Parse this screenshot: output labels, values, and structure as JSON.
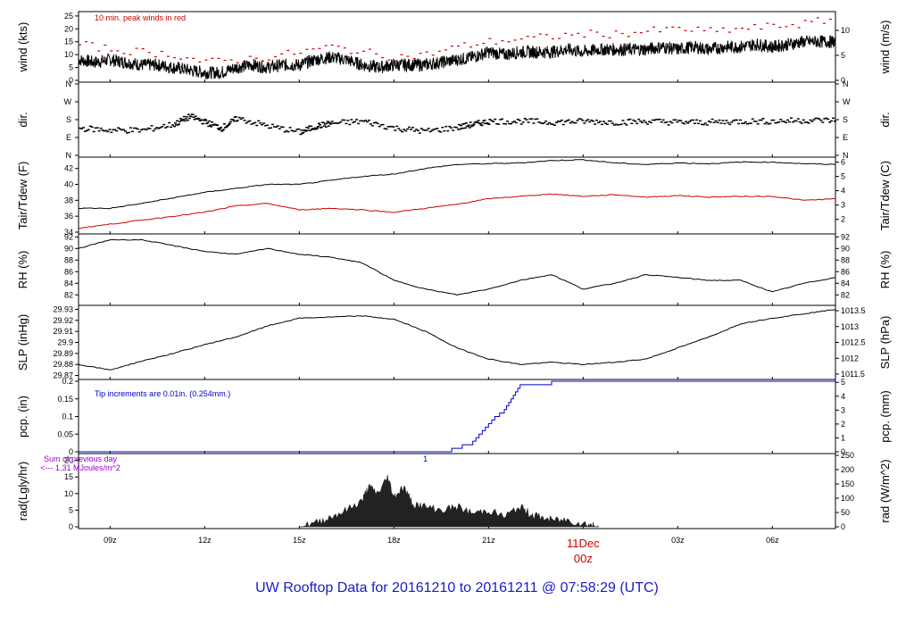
{
  "title": "UW Rooftop Data for 20161210  to  20161211 @ 07:58:29  (UTC)",
  "chart_data": [
    {
      "type": "line",
      "ylabel": "wind (kts)",
      "ylabel_right": "wind (m/s)",
      "ylim": [
        0,
        26
      ],
      "yticks": [
        0,
        5,
        10,
        15,
        20,
        25
      ],
      "ylim_right": [
        0,
        13.4
      ],
      "yticks_right": [
        0,
        5,
        10
      ],
      "annotation": "10 min. peak winds in red",
      "series": [
        {
          "color": "#000000",
          "x": [
            8,
            8.5,
            9,
            9.5,
            10,
            10.5,
            11,
            11.5,
            12,
            12.5,
            13,
            13.5,
            14,
            14.5,
            15,
            15.5,
            16,
            16.5,
            17,
            17.5,
            18,
            18.5,
            19,
            19.5,
            20,
            20.5,
            21,
            21.5,
            22,
            22.5,
            23,
            23.5,
            24,
            24.5,
            25,
            25.5,
            26,
            26.5,
            27,
            27.5,
            28,
            28.5,
            29,
            29.5,
            30,
            30.5,
            31,
            31.5,
            32
          ],
          "y": [
            8,
            7,
            8,
            7,
            6,
            6,
            5,
            4,
            3,
            3,
            5,
            6,
            5,
            6,
            6,
            8,
            9,
            8,
            6,
            5,
            6,
            6,
            6,
            7,
            8,
            9,
            11,
            10,
            11,
            11,
            11,
            12,
            11,
            12,
            12,
            12,
            12,
            13,
            12,
            13,
            12,
            13,
            13,
            14,
            13,
            14,
            15,
            15,
            15
          ]
        },
        {
          "color": "#cc0000",
          "style": "marks",
          "x": [
            8,
            9,
            10,
            11,
            12,
            13,
            14,
            15,
            16,
            17,
            18,
            19,
            20,
            21,
            22,
            23,
            24,
            25,
            26,
            27,
            28,
            29,
            30,
            31,
            32
          ],
          "y": [
            14,
            12,
            11,
            10,
            7,
            8,
            9,
            11,
            13,
            11,
            9,
            10,
            13,
            15,
            16,
            17,
            18,
            18,
            19,
            20,
            19,
            20,
            21,
            22,
            24
          ]
        }
      ]
    },
    {
      "type": "scatter",
      "ylabel": "dir.",
      "ylabel_right": "dir.",
      "yticks_labels": [
        "N",
        "E",
        "S",
        "W",
        "N"
      ],
      "ylim": [
        0,
        360
      ],
      "series": [
        {
          "color": "#000000",
          "x": [
            8,
            9,
            10,
            11,
            11.5,
            12,
            12.5,
            13,
            14,
            15,
            15.5,
            16,
            17,
            18,
            19,
            20,
            20.5,
            21,
            22,
            23,
            24,
            25,
            26,
            27,
            28,
            29,
            30,
            31,
            32
          ],
          "y": [
            140,
            130,
            130,
            160,
            200,
            170,
            140,
            190,
            150,
            120,
            150,
            165,
            175,
            140,
            125,
            145,
            160,
            175,
            175,
            170,
            175,
            170,
            175,
            170,
            170,
            175,
            175,
            180,
            180
          ]
        }
      ]
    },
    {
      "type": "line",
      "ylabel": "Tair/Tdew (F)",
      "ylabel_right": "Tair/Tdew (C)",
      "ylim": [
        34,
        43.2
      ],
      "yticks": [
        34,
        36,
        38,
        40,
        42
      ],
      "ylim_right": [
        1.11,
        6.22
      ],
      "yticks_right": [
        2,
        3,
        4,
        5,
        6
      ],
      "series": [
        {
          "color": "#000000",
          "x": [
            8,
            9,
            10,
            11,
            12,
            13,
            14,
            15,
            16,
            17,
            18,
            19,
            20,
            21,
            22,
            23,
            24,
            25,
            26,
            27,
            28,
            29,
            30,
            31,
            32
          ],
          "y": [
            37,
            37,
            37.6,
            38.3,
            39,
            39.5,
            40,
            40,
            40.5,
            41,
            41.3,
            42,
            42.5,
            42.6,
            42.7,
            43,
            43.1,
            42.7,
            42.5,
            42.7,
            42.6,
            42.8,
            42.8,
            42.6,
            42.5
          ]
        },
        {
          "color": "#cc0000",
          "x": [
            8,
            9,
            10,
            11,
            12,
            13,
            14,
            15,
            16,
            17,
            18,
            19,
            20,
            21,
            22,
            23,
            24,
            25,
            26,
            27,
            28,
            29,
            30,
            31,
            32
          ],
          "y": [
            34.5,
            35,
            35.5,
            36,
            36.5,
            37.3,
            37.6,
            36.8,
            37,
            36.8,
            36.5,
            37,
            37.5,
            38.2,
            38.5,
            38.8,
            38.5,
            38.7,
            38.4,
            38.6,
            38.4,
            38.5,
            38.5,
            38,
            38.2
          ]
        }
      ]
    },
    {
      "type": "line",
      "ylabel": "RH (%)",
      "ylabel_right": "RH (%)",
      "ylim": [
        80.5,
        92.2
      ],
      "yticks": [
        82,
        84,
        86,
        88,
        90,
        92
      ],
      "series": [
        {
          "color": "#000000",
          "x": [
            8,
            9,
            10,
            11,
            12,
            13,
            14,
            15,
            16,
            17,
            18,
            19,
            20,
            21,
            22,
            23,
            24,
            25,
            26,
            27,
            28,
            29,
            30,
            31,
            32
          ],
          "y": [
            90,
            91.5,
            91.5,
            90.5,
            89.5,
            89,
            90,
            89,
            88.5,
            87.5,
            84.5,
            83,
            82,
            83,
            84.5,
            85.5,
            83,
            84,
            85.5,
            85,
            84.5,
            84.5,
            82.5,
            84,
            85
          ]
        }
      ]
    },
    {
      "type": "line",
      "ylabel": "SLP (inHg)",
      "ylabel_right": "SLP (hPa)",
      "ylim": [
        29.868,
        29.932
      ],
      "yticks": [
        29.87,
        29.88,
        29.89,
        29.9,
        29.91,
        29.92,
        29.93
      ],
      "yticks_right_labels": [
        "1011.5",
        "1012",
        "1012.5",
        "1013",
        "1013.5"
      ],
      "series": [
        {
          "color": "#000000",
          "x": [
            8,
            9,
            10,
            11,
            12,
            13,
            14,
            15,
            16,
            17,
            18,
            19,
            20,
            21,
            22,
            23,
            24,
            25,
            26,
            27,
            28,
            29,
            30,
            31,
            32
          ],
          "y": [
            29.88,
            29.875,
            29.883,
            29.89,
            29.898,
            29.905,
            29.915,
            29.922,
            29.923,
            29.924,
            29.921,
            29.91,
            29.895,
            29.885,
            29.88,
            29.882,
            29.88,
            29.882,
            29.885,
            29.895,
            29.905,
            29.917,
            29.922,
            29.926,
            29.93
          ]
        }
      ]
    },
    {
      "type": "line",
      "ylabel": "pcp. (in)",
      "ylabel_right": "pcp. (mm)",
      "ylim": [
        0,
        0.2
      ],
      "yticks": [
        0,
        0.05,
        0.1,
        0.15,
        0.2
      ],
      "ylim_right": [
        0,
        5.08
      ],
      "yticks_right": [
        0,
        1,
        2,
        3,
        4,
        5
      ],
      "annotation": "Tip increments are 0.01in. (0.254mm.)",
      "series": [
        {
          "color": "#0000cc",
          "x": [
            8,
            19.5,
            20.5,
            21.2,
            21.5,
            22,
            22,
            23,
            32
          ],
          "y": [
            0,
            0,
            0.03,
            0.1,
            0.12,
            0.19,
            0.19,
            0.2,
            0.2
          ]
        }
      ]
    },
    {
      "type": "area",
      "ylabel": "rad(Lgly/hr)",
      "ylabel_right": "rad (W/m^2)",
      "ylim": [
        0,
        21.5
      ],
      "yticks": [
        0,
        5,
        10,
        15,
        20
      ],
      "ylim_right": [
        0,
        250
      ],
      "yticks_right": [
        0,
        50,
        100,
        150,
        200,
        250
      ],
      "annotation": "Sum of previous day",
      "annotation2": "<--- 1.31 MJoules/m^2",
      "series": [
        {
          "color": "#222222",
          "x": [
            15,
            15.5,
            16,
            16.5,
            17,
            17.2,
            17.5,
            17.8,
            18,
            18.3,
            18.6,
            19,
            19.5,
            20,
            20.5,
            21,
            21.5,
            22,
            22.3,
            22.6,
            23,
            23.5,
            24,
            24.3,
            24.5
          ],
          "y": [
            0,
            1,
            3,
            5,
            8,
            12,
            10,
            15,
            9,
            12,
            7,
            6,
            5,
            6,
            4,
            5,
            3,
            6,
            4,
            3,
            2,
            2,
            1,
            0.5,
            0
          ]
        }
      ]
    }
  ],
  "x_axis": {
    "xlim": [
      8,
      32
    ],
    "ticks": [
      {
        "x": 9,
        "label": "09z"
      },
      {
        "x": 12,
        "label": "12z"
      },
      {
        "x": 15,
        "label": "15z"
      },
      {
        "x": 18,
        "label": "18z"
      },
      {
        "x": 21,
        "label": "21z"
      },
      {
        "x": 27,
        "label": "03z"
      },
      {
        "x": 30,
        "label": "06z"
      }
    ],
    "day_marker": {
      "x": 24,
      "label": "11Dec",
      "time": "00z",
      "color": "#cc0000"
    },
    "tip_marker": {
      "x": 19,
      "label": "1"
    }
  },
  "colors": {
    "annotation_wind": "#cc0000",
    "annotation_pcp": "#0000cc",
    "annotation_rad": "#9900cc",
    "title": "#1a1acc"
  }
}
